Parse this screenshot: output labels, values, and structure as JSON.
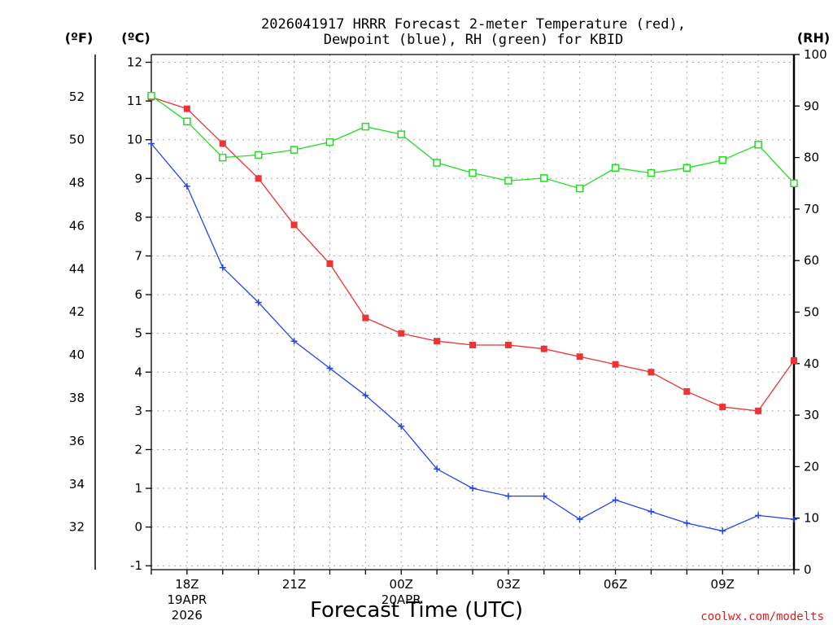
{
  "chart_data": {
    "type": "line",
    "title": {
      "line1": "2026041917 HRRR Forecast 2-meter Temperature (red),",
      "line2": "Dewpoint (blue), RH (green) for KBID"
    },
    "units": {
      "fahrenheit": "(ºF)",
      "celsius": "(ºC)",
      "rh": "(RH)"
    },
    "xlabel": "Forecast Time (UTC)",
    "credit": "coolwx.com/modelts",
    "x_hours": [
      17,
      18,
      19,
      20,
      21,
      22,
      23,
      24,
      25,
      26,
      27,
      28,
      29,
      30,
      31,
      32,
      33,
      34,
      35
    ],
    "x_ticks": [
      {
        "hour": 18,
        "label": "18Z",
        "date": "19APR",
        "year": "2026"
      },
      {
        "hour": 21,
        "label": "21Z"
      },
      {
        "hour": 24,
        "label": "00Z",
        "date": "20APR"
      },
      {
        "hour": 27,
        "label": "03Z"
      },
      {
        "hour": 30,
        "label": "06Z"
      },
      {
        "hour": 33,
        "label": "09Z"
      }
    ],
    "xlim": [
      17,
      35
    ],
    "y_celsius": {
      "lim": [
        -1.1,
        12.2
      ],
      "ticks": [
        "-1",
        "0",
        "1",
        "2",
        "3",
        "4",
        "5",
        "6",
        "7",
        "8",
        "9",
        "10",
        "11",
        "12"
      ]
    },
    "y_fahrenheit": {
      "ticks": [
        "32",
        "34",
        "36",
        "38",
        "40",
        "42",
        "44",
        "46",
        "48",
        "50",
        "52"
      ]
    },
    "y_rh": {
      "lim": [
        0,
        100
      ],
      "ticks": [
        "0",
        "10",
        "20",
        "30",
        "40",
        "50",
        "60",
        "70",
        "80",
        "90",
        "100"
      ]
    },
    "series": [
      {
        "name": "Temperature",
        "axis": "celsius",
        "color": "#ee3333",
        "marker": "filled-square",
        "values": [
          11.1,
          10.8,
          9.9,
          9.0,
          7.8,
          6.8,
          5.4,
          5.0,
          4.8,
          4.7,
          4.7,
          4.6,
          4.4,
          4.2,
          4.0,
          3.5,
          3.1,
          3.0,
          4.3
        ]
      },
      {
        "name": "Dewpoint",
        "axis": "celsius",
        "color": "#2244ee",
        "marker": "plus",
        "values": [
          9.9,
          8.8,
          6.7,
          5.8,
          4.8,
          4.1,
          3.4,
          2.6,
          1.5,
          1.0,
          0.8,
          0.8,
          0.2,
          0.7,
          0.4,
          0.1,
          -0.1,
          0.3,
          0.2
        ]
      },
      {
        "name": "RH",
        "axis": "rh",
        "color": "#22dd22",
        "marker": "open-square",
        "values": [
          92,
          87,
          80,
          80.5,
          81.5,
          83,
          86,
          84.5,
          79,
          77,
          75.5,
          76,
          74,
          78,
          77,
          78,
          79.5,
          82.5,
          75
        ]
      }
    ],
    "grid": true,
    "legend": "none"
  }
}
